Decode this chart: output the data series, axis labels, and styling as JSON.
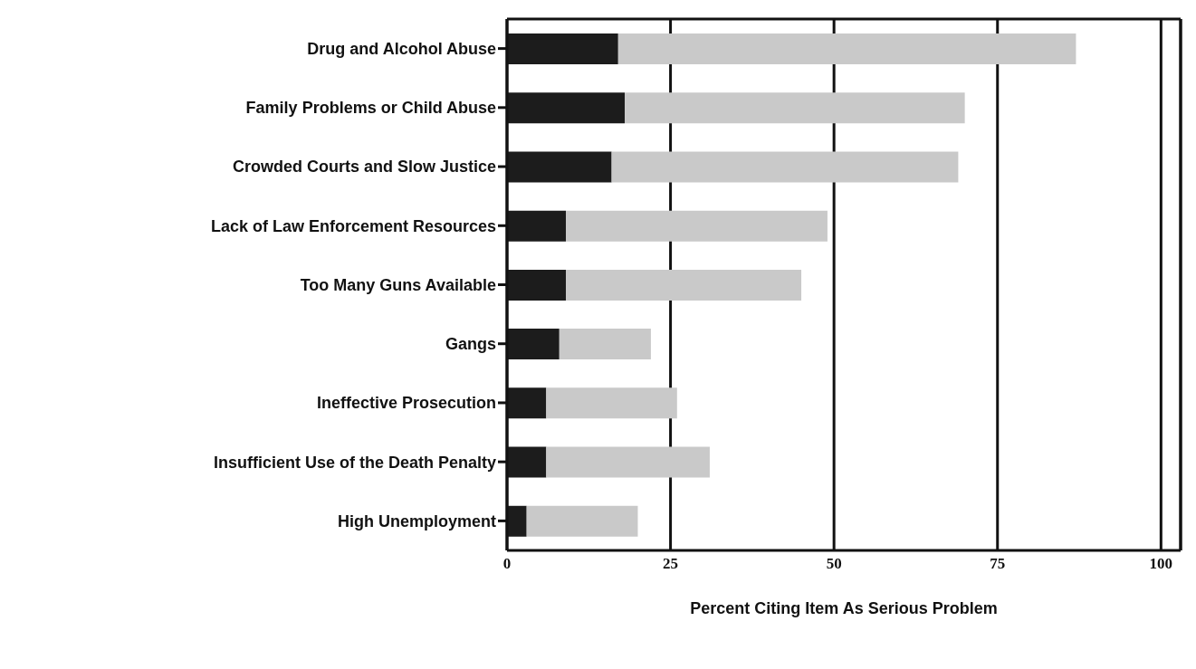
{
  "chart_data": {
    "type": "bar",
    "orientation": "horizontal",
    "stacked": true,
    "xlabel": "Percent Citing Item As Serious Problem",
    "categories": [
      "Drug and Alcohol Abuse",
      "Family Problems or Child Abuse",
      "Crowded Courts and Slow Justice",
      "Lack of Law Enforcement Resources",
      "Too Many Guns Available",
      "Gangs",
      "Ineffective  Prosecution",
      "Insufficient Use of the Death Penalty",
      "High  Unemployment"
    ],
    "series": [
      {
        "color": "#1c1c1c",
        "values": [
          17,
          18,
          16,
          9,
          9,
          8,
          6,
          6,
          3
        ]
      },
      {
        "color": "#c9c9c9",
        "values": [
          70,
          52,
          53,
          40,
          36,
          14,
          20,
          25,
          17
        ]
      }
    ],
    "xlim": [
      0,
      103
    ],
    "xticks": [
      0,
      25,
      50,
      75,
      100
    ],
    "grid": "x",
    "legend": false
  }
}
